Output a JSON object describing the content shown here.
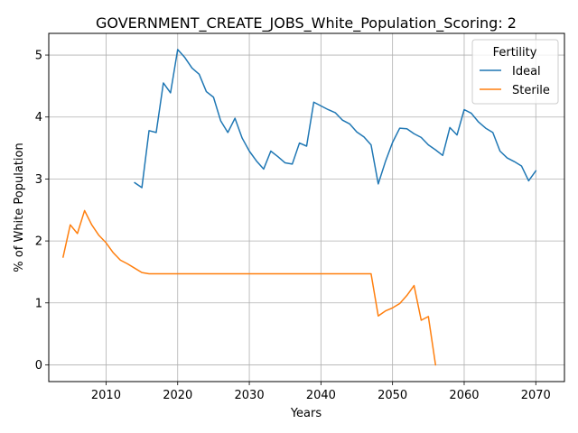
{
  "chart_data": {
    "type": "line",
    "title": "GOVERNMENT_CREATE_JOBS_White_Population_Scoring: 2",
    "xlabel": "Years",
    "ylabel": "% of White Population",
    "xlim": [
      2002,
      2074
    ],
    "ylim": [
      -0.27,
      5.35
    ],
    "xticks": [
      2010,
      2020,
      2030,
      2040,
      2050,
      2060,
      2070
    ],
    "yticks": [
      0,
      1,
      2,
      3,
      4,
      5
    ],
    "grid": true,
    "legend": {
      "title": "Fertility",
      "placement": "top-right"
    },
    "series": [
      {
        "name": "Ideal",
        "color": "#1f77b4",
        "x": [
          2014,
          2015,
          2016,
          2017,
          2018,
          2019,
          2020,
          2021,
          2022,
          2023,
          2024,
          2025,
          2026,
          2027,
          2028,
          2029,
          2030,
          2031,
          2032,
          2033,
          2034,
          2035,
          2036,
          2037,
          2038,
          2039,
          2040,
          2041,
          2042,
          2043,
          2044,
          2045,
          2046,
          2047,
          2048,
          2049,
          2050,
          2051,
          2052,
          2053,
          2054,
          2055,
          2056,
          2057,
          2058,
          2059,
          2060,
          2061,
          2062,
          2063,
          2064,
          2065,
          2066,
          2067,
          2068,
          2069,
          2070
        ],
        "y": [
          2.94,
          2.86,
          3.78,
          3.75,
          4.55,
          4.39,
          5.09,
          4.96,
          4.79,
          4.69,
          4.41,
          4.32,
          3.94,
          3.75,
          3.98,
          3.66,
          3.45,
          3.29,
          3.16,
          3.45,
          3.36,
          3.26,
          3.24,
          3.58,
          3.53,
          4.24,
          4.18,
          4.12,
          4.07,
          3.95,
          3.89,
          3.76,
          3.68,
          3.55,
          2.92,
          3.28,
          3.59,
          3.82,
          3.81,
          3.73,
          3.67,
          3.55,
          3.47,
          3.38,
          3.83,
          3.71,
          4.12,
          4.06,
          3.92,
          3.82,
          3.75,
          3.45,
          3.34,
          3.28,
          3.21,
          2.97,
          3.13
        ]
      },
      {
        "name": "Sterile",
        "color": "#ff7f0e",
        "x": [
          2004,
          2005,
          2006,
          2007,
          2008,
          2009,
          2010,
          2011,
          2012,
          2013,
          2014,
          2015,
          2016,
          2017,
          2018,
          2019,
          2020,
          2021,
          2022,
          2023,
          2024,
          2025,
          2026,
          2027,
          2028,
          2029,
          2030,
          2031,
          2032,
          2033,
          2034,
          2035,
          2036,
          2037,
          2038,
          2039,
          2040,
          2041,
          2042,
          2043,
          2044,
          2045,
          2046,
          2047,
          2048,
          2049,
          2050,
          2051,
          2052,
          2053,
          2054,
          2055,
          2056
        ],
        "y": [
          1.74,
          2.26,
          2.12,
          2.49,
          2.26,
          2.09,
          1.97,
          1.81,
          1.69,
          1.63,
          1.56,
          1.49,
          1.47,
          1.47,
          1.47,
          1.47,
          1.47,
          1.47,
          1.47,
          1.47,
          1.47,
          1.47,
          1.47,
          1.47,
          1.47,
          1.47,
          1.47,
          1.47,
          1.47,
          1.47,
          1.47,
          1.47,
          1.47,
          1.47,
          1.47,
          1.47,
          1.47,
          1.47,
          1.47,
          1.47,
          1.47,
          1.47,
          1.47,
          1.47,
          0.79,
          0.87,
          0.92,
          0.99,
          1.12,
          1.28,
          0.72,
          0.78,
          0.0
        ]
      }
    ]
  }
}
